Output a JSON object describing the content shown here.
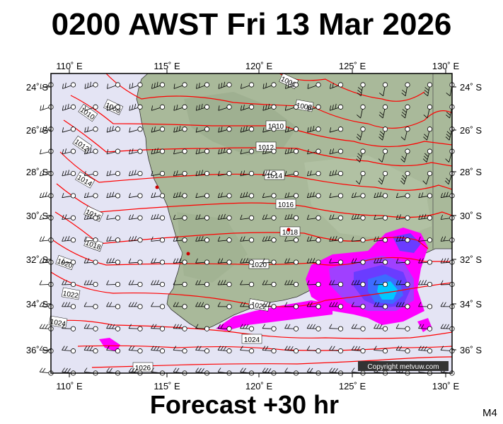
{
  "title": "0200 AWST Fri 13 Mar 2026",
  "forecast_label": "Forecast +30 hr",
  "model_label": "M4",
  "copyright": "Copyright metvuw.com",
  "longitude_labels": [
    "110˚ E",
    "115˚ E",
    "120˚ E",
    "125˚ E",
    "130˚ E"
  ],
  "latitude_labels": [
    "24˚ S",
    "26˚ S",
    "28˚ S",
    "30˚ S",
    "32˚ S",
    "34˚ S",
    "36˚ S"
  ],
  "isobar_labels": [
    "1006",
    "1008",
    "1008",
    "1010",
    "1010",
    "1012",
    "1012",
    "1014",
    "1014",
    "1016",
    "1016",
    "1018",
    "1018",
    "1020",
    "1020",
    "1022",
    "1022",
    "1024",
    "1024",
    "1026"
  ],
  "colors": {
    "ocean": "#e4e4f4",
    "land": "#a9b99a",
    "isobar": "#ff0000",
    "rain_light": "#ff00ff",
    "rain_mid": "#6a3cff",
    "rain_heavy": "#00c8ff"
  },
  "icons": [
    "wind-barb-icon",
    "station-circle-icon"
  ]
}
